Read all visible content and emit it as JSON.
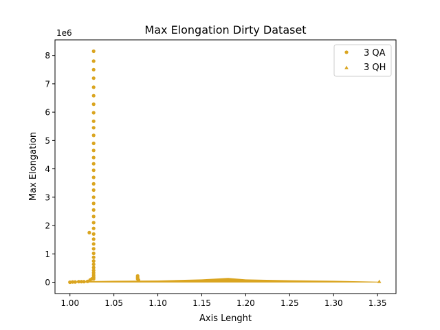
{
  "chart_data": {
    "type": "scatter",
    "title": "Max Elongation Dirty Dataset",
    "xlabel": "Axis Lenght",
    "ylabel": "Max Elongation",
    "y_offset_label": "1e6",
    "xlim": [
      0.983,
      1.371
    ],
    "ylim": [
      -0.4,
      8.55
    ],
    "x_ticks": [
      {
        "value": 1.0,
        "label": "1.00"
      },
      {
        "value": 1.05,
        "label": "1.05"
      },
      {
        "value": 1.1,
        "label": "1.10"
      },
      {
        "value": 1.15,
        "label": "1.15"
      },
      {
        "value": 1.2,
        "label": "1.20"
      },
      {
        "value": 1.25,
        "label": "1.25"
      },
      {
        "value": 1.3,
        "label": "1.30"
      },
      {
        "value": 1.35,
        "label": "1.35"
      }
    ],
    "y_ticks": [
      {
        "value": 0,
        "label": "0"
      },
      {
        "value": 1,
        "label": "1"
      },
      {
        "value": 2,
        "label": "2"
      },
      {
        "value": 3,
        "label": "3"
      },
      {
        "value": 4,
        "label": "4"
      },
      {
        "value": 5,
        "label": "5"
      },
      {
        "value": 6,
        "label": "6"
      },
      {
        "value": 7,
        "label": "7"
      },
      {
        "value": 8,
        "label": "8"
      }
    ],
    "grid": false,
    "legend_position": "top-right",
    "series": [
      {
        "name": "3 QA",
        "marker": "circle",
        "color": "#DAA520",
        "points": [
          [
            1.027,
            8.15
          ],
          [
            1.027,
            7.8
          ],
          [
            1.027,
            7.5
          ],
          [
            1.027,
            7.2
          ],
          [
            1.027,
            6.88
          ],
          [
            1.027,
            6.58
          ],
          [
            1.027,
            6.28
          ],
          [
            1.027,
            5.98
          ],
          [
            1.027,
            5.68
          ],
          [
            1.027,
            5.45
          ],
          [
            1.027,
            5.18
          ],
          [
            1.027,
            4.9
          ],
          [
            1.027,
            4.65
          ],
          [
            1.027,
            4.4
          ],
          [
            1.027,
            4.18
          ],
          [
            1.027,
            3.95
          ],
          [
            1.027,
            3.7
          ],
          [
            1.027,
            3.47
          ],
          [
            1.027,
            3.25
          ],
          [
            1.027,
            3.0
          ],
          [
            1.027,
            2.78
          ],
          [
            1.027,
            2.55
          ],
          [
            1.027,
            2.32
          ],
          [
            1.027,
            2.1
          ],
          [
            1.027,
            1.9
          ],
          [
            1.027,
            1.7
          ],
          [
            1.027,
            1.52
          ],
          [
            1.027,
            1.35
          ],
          [
            1.027,
            1.18
          ],
          [
            1.027,
            1.02
          ],
          [
            1.027,
            0.88
          ],
          [
            1.027,
            0.75
          ],
          [
            1.027,
            0.63
          ],
          [
            1.027,
            0.52
          ],
          [
            1.027,
            0.42
          ],
          [
            1.027,
            0.33
          ],
          [
            1.027,
            0.25
          ],
          [
            1.027,
            0.18
          ],
          [
            1.027,
            0.12
          ],
          [
            1.022,
            1.75
          ],
          [
            1.077,
            0.22
          ],
          [
            1.077,
            0.17
          ],
          [
            1.077,
            0.12
          ],
          [
            1.078,
            0.08
          ],
          [
            1.0,
            0.0
          ],
          [
            1.003,
            0.01
          ],
          [
            1.006,
            0.01
          ],
          [
            1.01,
            0.02
          ],
          [
            1.013,
            0.02
          ],
          [
            1.016,
            0.02
          ],
          [
            1.02,
            0.03
          ],
          [
            1.023,
            0.08
          ],
          [
            1.025,
            0.12
          ]
        ]
      },
      {
        "name": "3 QH",
        "marker": "triangle",
        "color": "#DAA520",
        "band": {
          "x_start": 1.0,
          "x_end": 1.352,
          "upper": [
            [
              1.0,
              0.01
            ],
            [
              1.025,
              0.04
            ],
            [
              1.05,
              0.05
            ],
            [
              1.1,
              0.06
            ],
            [
              1.15,
              0.1
            ],
            [
              1.18,
              0.15
            ],
            [
              1.2,
              0.1
            ],
            [
              1.25,
              0.07
            ],
            [
              1.3,
              0.05
            ],
            [
              1.352,
              0.02
            ]
          ],
          "lower": [
            [
              1.0,
              -0.01
            ],
            [
              1.05,
              -0.01
            ],
            [
              1.1,
              -0.01
            ],
            [
              1.15,
              -0.01
            ],
            [
              1.2,
              -0.01
            ],
            [
              1.25,
              -0.01
            ],
            [
              1.3,
              -0.01
            ],
            [
              1.352,
              -0.01
            ]
          ]
        }
      }
    ]
  }
}
